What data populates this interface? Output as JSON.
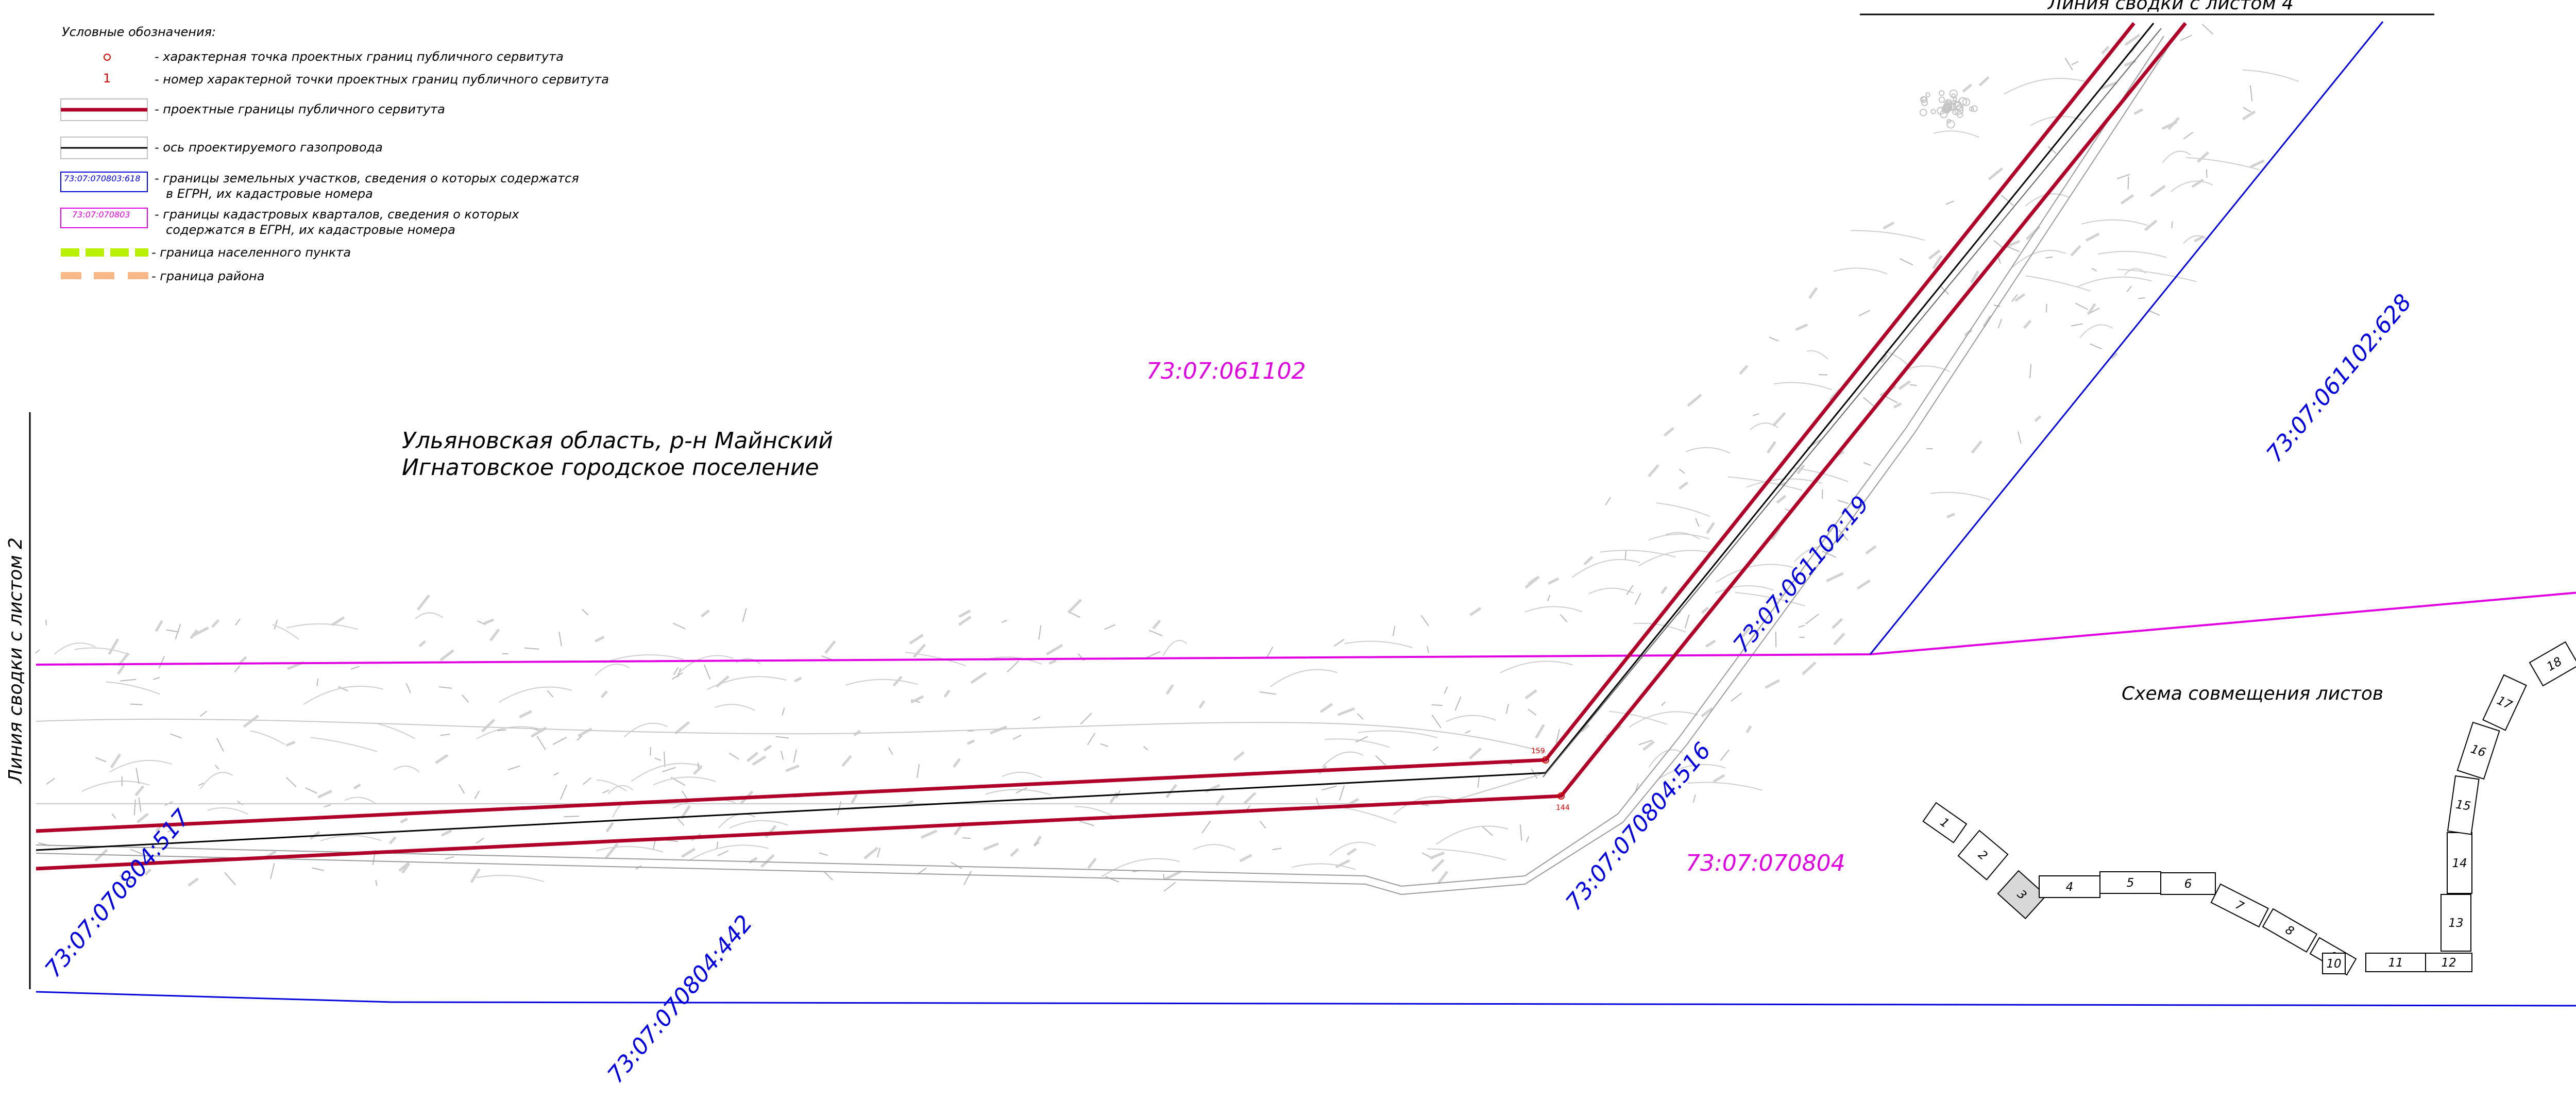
{
  "legend": {
    "title": "Условные обозначения:",
    "items": [
      {
        "symbol": "point",
        "text": "- характерная точка проектных границ публичного сервитута",
        "color": "#d00000"
      },
      {
        "symbol": "number",
        "symbol_text": "1",
        "text": "- номер характерной точки проектных границ публичного сервитута",
        "color": "#d00000"
      },
      {
        "symbol": "red-line",
        "text": "- проектные границы публичного сервитута",
        "color": "#b0002a"
      },
      {
        "symbol": "black-line",
        "text": "- ось проектируемого газопровода",
        "color": "#000000"
      },
      {
        "symbol": "blue-box",
        "symbol_text": "73:07:070803:618",
        "text": "- границы земельных участков, сведения о которых содержатся",
        "text2": "в ЕГРН, их кадастровые номера",
        "color": "#0000dd"
      },
      {
        "symbol": "magenta-box",
        "symbol_text": "73:07:070803",
        "text": "- границы кадастровых кварталов, сведения о которых",
        "text2": "содержатся в ЕГРН, их кадастровые номера",
        "color": "#e100e1"
      },
      {
        "symbol": "green-dash",
        "text": "- граница населенного пункта",
        "color": "#b8f000"
      },
      {
        "symbol": "orange-dash",
        "text": "- граница района",
        "color": "#f8b888"
      }
    ]
  },
  "region": {
    "line1": "Ульяновская область, р-н Майнский",
    "line2": "Игнатовское городское поселение"
  },
  "match_lines": {
    "top": "Линия сводки с листом 4",
    "left": "Линия сводки с листом 2"
  },
  "cadastral_quarters": [
    "73:07:061102",
    "73:07:070804"
  ],
  "cadastral_parcels": [
    "73:07:061102:628",
    "73:07:061102:19",
    "73:07:070804:516",
    "73:07:070804:517",
    "73:07:070804:442"
  ],
  "points": {
    "p1": "159",
    "p2": "144"
  },
  "sheet_scheme": {
    "title": "Схема совмещения листов",
    "sheets": [
      "1",
      "2",
      "3",
      "4",
      "5",
      "6",
      "7",
      "8",
      "9",
      "10",
      "11",
      "12",
      "13",
      "14",
      "15",
      "16",
      "17",
      "18"
    ],
    "active_sheet": "3"
  },
  "colors": {
    "servitude": "#b0002a",
    "axis": "#000000",
    "parcel": "#0000dd",
    "quarter": "#e100e1",
    "topo": "#b8b8b8"
  }
}
